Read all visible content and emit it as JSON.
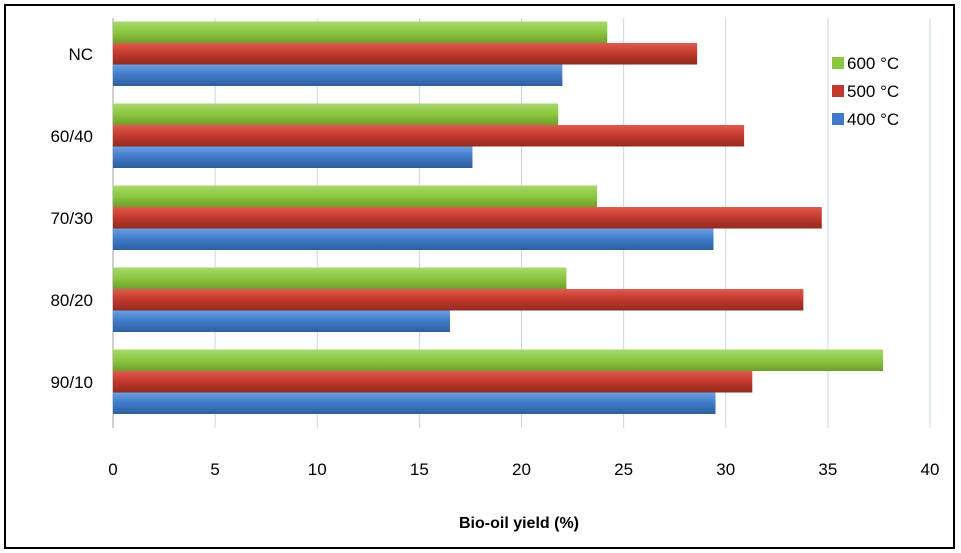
{
  "chart_data": {
    "type": "bar",
    "orientation": "horizontal",
    "categories": [
      "NC",
      "60/40",
      "70/30",
      "80/20",
      "90/10"
    ],
    "series": [
      {
        "name": "600 °C",
        "color": "#8cc63f",
        "values": [
          24.2,
          21.8,
          23.7,
          22.2,
          37.7
        ]
      },
      {
        "name": "500 °C",
        "color": "#c0392b",
        "values": [
          28.6,
          30.9,
          34.7,
          33.8,
          31.3
        ]
      },
      {
        "name": "400 °C",
        "color": "#3f7ac9",
        "values": [
          22.0,
          17.6,
          29.4,
          16.5,
          29.5
        ]
      }
    ],
    "xlabel": "Bio-oil yield (%)",
    "ylabel": "",
    "xlim": [
      0,
      40
    ],
    "xticks": [
      "0",
      "5",
      "10",
      "15",
      "20",
      "25",
      "30",
      "35",
      "40"
    ],
    "grid": true,
    "legend_position": "right"
  }
}
